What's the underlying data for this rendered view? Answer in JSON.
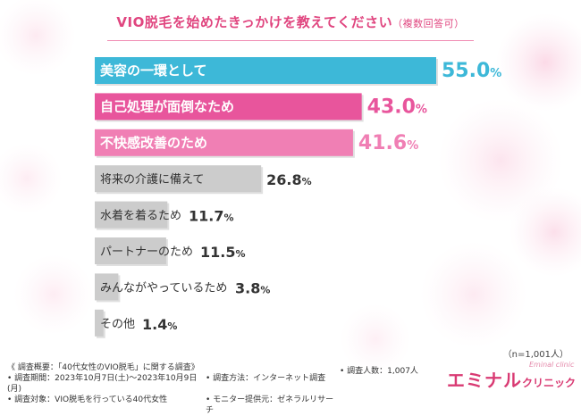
{
  "title": {
    "main": "VIO脱毛を始めたきっかけを教えてください",
    "sub": "（複数回答可）"
  },
  "chart_data": {
    "type": "bar",
    "orientation": "horizontal",
    "categories": [
      "美容の一環として",
      "自己処理が面倒なため",
      "不快感改善のため",
      "将来の介護に備えて",
      "水着を着るため",
      "パートナーのため",
      "みんながやっているため",
      "その他"
    ],
    "values": [
      55.0,
      43.0,
      41.6,
      26.8,
      11.7,
      11.5,
      3.8,
      1.4
    ],
    "value_labels": [
      {
        "num": "55.0",
        "unit": "%"
      },
      {
        "num": "43.0",
        "unit": "%"
      },
      {
        "num": "41.6",
        "unit": "%"
      },
      {
        "num": "26.8",
        "unit": "%"
      },
      {
        "num": "11.7",
        "unit": "%"
      },
      {
        "num": "11.5",
        "unit": "%"
      },
      {
        "num": "3.8",
        "unit": "%"
      },
      {
        "num": "1.4",
        "unit": "%"
      }
    ],
    "bar_colors": [
      "#3db8d8",
      "#e8559c",
      "#f07fb4",
      "#cccccc",
      "#cccccc",
      "#cccccc",
      "#cccccc",
      "#cccccc"
    ],
    "value_colors": [
      "#3db8d8",
      "#e8559c",
      "#f07fb4",
      "#333333",
      "#333333",
      "#333333",
      "#333333",
      "#333333"
    ],
    "label_colors": [
      "#ffffff",
      "#ffffff",
      "#ffffff",
      "#333333",
      "#333333",
      "#333333",
      "#333333",
      "#333333"
    ],
    "xlim": [
      0,
      55
    ],
    "grid": false,
    "legend": "none"
  },
  "sample_note": "（n=1,001人）",
  "footer": {
    "survey_title": "《 調査概要：「40代女性のVIO脱毛」に関する調査》",
    "period": "• 調査期間：2023年10月7日(土)～2023年10月9日(月)",
    "method": "• 調査方法：インターネット調査",
    "count": "• 調査人数：1,007人",
    "target": "• 調査対象：VIO脱毛を行っている40代女性",
    "provider": "• モニター提供元：ゼネラルリサーチ"
  },
  "logo": {
    "main": "エミナル",
    "sub": "クリニック",
    "script": "Eminal clinic"
  }
}
